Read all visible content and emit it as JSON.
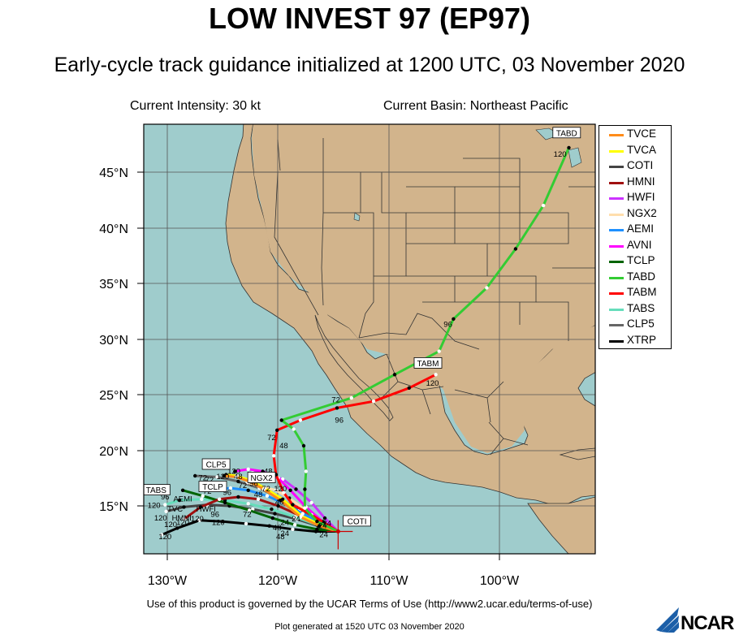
{
  "title": "LOW INVEST 97 (EP97)",
  "subtitle": "Early-cycle track guidance initialized at 1200 UTC, 03 November 2020",
  "current_intensity": "Current Intensity: 30 kt",
  "current_basin": "Current Basin: Northeast Pacific",
  "footer_terms": "Use of this product is governed by the UCAR Terms of Use (http://www2.ucar.edu/terms-of-use)",
  "footer_generated": "Plot generated at 1520 UTC   03 November 2020",
  "logo_text": "NCAR",
  "colors": {
    "ocean": "#9fcccc",
    "land": "#d2b48c",
    "border": "#333333"
  },
  "legend": [
    {
      "name": "TVCE",
      "color": "#ff8c1a"
    },
    {
      "name": "TVCA",
      "color": "#ffff00"
    },
    {
      "name": "COTI",
      "color": "#444444"
    },
    {
      "name": "HMNI",
      "color": "#a01010"
    },
    {
      "name": "HWFI",
      "color": "#cc33ff"
    },
    {
      "name": "NGX2",
      "color": "#ffdead"
    },
    {
      "name": "AEMI",
      "color": "#1e90ff"
    },
    {
      "name": "AVNI",
      "color": "#ff00ff"
    },
    {
      "name": "TCLP",
      "color": "#006400"
    },
    {
      "name": "TABD",
      "color": "#33cc33"
    },
    {
      "name": "TABM",
      "color": "#ff0000"
    },
    {
      "name": "TABS",
      "color": "#66ddbb"
    },
    {
      "name": "CLP5",
      "color": "#666666"
    },
    {
      "name": "XTRP",
      "color": "#000000"
    }
  ],
  "axes": {
    "lat_labels": [
      "45°N",
      "40°N",
      "35°N",
      "30°N",
      "25°N",
      "20°N",
      "15°N"
    ],
    "lon_labels": [
      "130°W",
      "120°W",
      "110°W",
      "100°W"
    ]
  },
  "chart_data": {
    "type": "map",
    "extent": {
      "lon": [
        -132,
        -92
      ],
      "lat": [
        11.5,
        49
      ]
    },
    "grid": true,
    "current_position": {
      "lon": -114.6,
      "lat": 12.7
    },
    "tracks": [
      {
        "name": "TABD",
        "color": "#33cc33",
        "points": [
          [
            -114.6,
            12.7
          ],
          [
            -116.5,
            13.6
          ],
          [
            -117.6,
            14.8
          ],
          [
            -117.6,
            16.5
          ],
          [
            -117.5,
            18.1
          ],
          [
            -117.7,
            20.4
          ],
          [
            -118.6,
            21.9
          ],
          [
            -119.7,
            22.7
          ],
          [
            -113.4,
            24.7
          ],
          [
            -109.5,
            26.8
          ],
          [
            -105.5,
            28.9
          ],
          [
            -104.2,
            31.8
          ],
          [
            -101.2,
            34.6
          ],
          [
            -98.6,
            38.1
          ],
          [
            -96.1,
            42.0
          ],
          [
            -93.8,
            47.2
          ]
        ],
        "labels": [
          {
            "t": "24",
            "lon": -115.6,
            "lat": 13.2
          },
          {
            "t": "72",
            "lon": -114.8,
            "lat": 24.3
          },
          {
            "t": "96",
            "lon": -104.7,
            "lat": 31.1
          },
          {
            "t": "120",
            "lon": -94.6,
            "lat": 46.4
          }
        ]
      },
      {
        "name": "TABM",
        "color": "#ff0000",
        "points": [
          [
            -114.6,
            12.7
          ],
          [
            -115.9,
            13.5
          ],
          [
            -117.0,
            14.2
          ],
          [
            -118.7,
            15.1
          ],
          [
            -119.5,
            16.2
          ],
          [
            -120.2,
            17.8
          ],
          [
            -120.4,
            19.5
          ],
          [
            -120.1,
            21.8
          ],
          [
            -118.0,
            22.7
          ],
          [
            -114.7,
            23.8
          ],
          [
            -111.4,
            24.4
          ],
          [
            -108.2,
            25.6
          ],
          [
            -105.8,
            26.8
          ]
        ],
        "labels": [
          {
            "t": "24",
            "lon": -116.0,
            "lat": 13.0
          },
          {
            "t": "48",
            "lon": -119.5,
            "lat": 20.2
          },
          {
            "t": "72",
            "lon": -120.6,
            "lat": 20.9
          },
          {
            "t": "96",
            "lon": -114.5,
            "lat": 22.5
          },
          {
            "t": "120",
            "lon": -106.1,
            "lat": 25.8
          }
        ]
      },
      {
        "name": "TVCE",
        "color": "#ff8c1a",
        "points": [
          [
            -114.6,
            12.7
          ],
          [
            -116.3,
            13.2
          ],
          [
            -118.0,
            14.0
          ],
          [
            -119.8,
            15.5
          ],
          [
            -121.3,
            16.5
          ],
          [
            -122.6,
            17.2
          ],
          [
            -123.8,
            17.6
          ],
          [
            -124.9,
            17.7
          ]
        ],
        "labels": []
      },
      {
        "name": "TVCA",
        "color": "#ffff00",
        "points": [
          [
            -114.6,
            12.7
          ],
          [
            -116.2,
            13.3
          ],
          [
            -117.9,
            14.1
          ],
          [
            -119.6,
            15.6
          ],
          [
            -121.2,
            16.6
          ],
          [
            -122.5,
            17.3
          ],
          [
            -123.7,
            17.7
          ],
          [
            -124.7,
            17.8
          ]
        ],
        "labels": []
      },
      {
        "name": "AVNI",
        "color": "#ff00ff",
        "points": [
          [
            -114.6,
            12.7
          ],
          [
            -116.0,
            13.6
          ],
          [
            -117.5,
            14.9
          ],
          [
            -118.9,
            16.4
          ],
          [
            -120.0,
            17.5
          ],
          [
            -121.4,
            18.1
          ],
          [
            -122.7,
            18.3
          ],
          [
            -123.9,
            18.1
          ]
        ],
        "labels": [
          {
            "t": "48",
            "lon": -120.9,
            "lat": 17.9
          }
        ]
      },
      {
        "name": "HWFI",
        "color": "#cc33ff",
        "points": [
          [
            -114.6,
            12.7
          ],
          [
            -115.8,
            13.9
          ],
          [
            -117.0,
            15.3
          ],
          [
            -118.4,
            16.5
          ],
          [
            -119.6,
            17.4
          ],
          [
            -121.0,
            17.8
          ],
          [
            -122.3,
            18.0
          ]
        ],
        "labels": [
          {
            "t": "96",
            "lon": -122.2,
            "lat": 16.8
          }
        ]
      },
      {
        "name": "NGX2",
        "color": "#ffdead",
        "points": [
          [
            -114.6,
            12.7
          ],
          [
            -116.0,
            13.4
          ],
          [
            -117.5,
            14.6
          ],
          [
            -119.0,
            15.7
          ],
          [
            -120.2,
            16.4
          ],
          [
            -121.7,
            16.8
          ],
          [
            -122.8,
            17.1
          ]
        ],
        "labels": [
          {
            "t": "120",
            "lon": -119.8,
            "lat": 16.3
          }
        ]
      },
      {
        "name": "AEMI",
        "color": "#1e90ff",
        "points": [
          [
            -114.6,
            12.7
          ],
          [
            -116.2,
            13.5
          ],
          [
            -117.8,
            14.3
          ],
          [
            -119.4,
            15.2
          ],
          [
            -121.0,
            15.9
          ],
          [
            -122.7,
            16.4
          ],
          [
            -124.3,
            16.6
          ],
          [
            -125.7,
            16.5
          ]
        ],
        "labels": []
      },
      {
        "name": "HMNI",
        "color": "#a01010",
        "points": [
          [
            -114.6,
            12.7
          ],
          [
            -116.4,
            13.4
          ],
          [
            -118.2,
            14.2
          ],
          [
            -120.0,
            15.0
          ],
          [
            -121.8,
            15.6
          ],
          [
            -123.6,
            15.8
          ],
          [
            -125.3,
            15.6
          ],
          [
            -127.0,
            14.9
          ],
          [
            -128.5,
            13.8
          ]
        ],
        "labels": [
          {
            "t": "120",
            "lon": -128.6,
            "lat": 13.3
          }
        ]
      },
      {
        "name": "TCLP",
        "color": "#006400",
        "points": [
          [
            -114.6,
            12.7
          ],
          [
            -116.5,
            12.9
          ],
          [
            -118.5,
            13.3
          ],
          [
            -120.5,
            13.9
          ],
          [
            -122.6,
            14.6
          ],
          [
            -124.8,
            15.3
          ],
          [
            -126.8,
            15.9
          ],
          [
            -128.6,
            16.4
          ]
        ],
        "labels": [
          {
            "t": "72",
            "lon": -122.8,
            "lat": 14.0
          }
        ]
      },
      {
        "name": "TABS",
        "color": "#66ddbb",
        "points": [
          [
            -114.6,
            12.7
          ],
          [
            -116.5,
            13.3
          ],
          [
            -118.5,
            14.0
          ],
          [
            -120.6,
            14.7
          ],
          [
            -122.7,
            15.2
          ],
          [
            -124.8,
            15.5
          ],
          [
            -126.9,
            15.6
          ],
          [
            -128.9,
            15.5
          ],
          [
            -130.2,
            15.1
          ]
        ],
        "labels": [
          {
            "t": "120",
            "lon": -131.2,
            "lat": 14.8
          }
        ]
      },
      {
        "name": "CLP5",
        "color": "#666666",
        "points": [
          [
            -114.6,
            12.7
          ],
          [
            -116.3,
            13.5
          ],
          [
            -118.1,
            14.6
          ],
          [
            -119.9,
            15.7
          ],
          [
            -121.7,
            16.6
          ],
          [
            -123.6,
            17.2
          ],
          [
            -125.5,
            17.6
          ],
          [
            -127.5,
            17.7
          ]
        ],
        "labels": [
          {
            "t": "72",
            "lon": -126.8,
            "lat": 17.3
          }
        ]
      },
      {
        "name": "COTI",
        "color": "#444444",
        "points": [
          [
            -114.6,
            12.7
          ],
          [
            -116.4,
            13.2
          ],
          [
            -118.3,
            13.8
          ],
          [
            -120.3,
            14.3
          ],
          [
            -122.3,
            14.7
          ],
          [
            -124.4,
            15.0
          ],
          [
            -126.4,
            15.1
          ],
          [
            -128.5,
            14.9
          ],
          [
            -130.1,
            14.5
          ]
        ],
        "labels": [
          {
            "t": "48",
            "lon": -120.1,
            "lat": 12.8
          },
          {
            "t": "120",
            "lon": -130.6,
            "lat": 13.7
          }
        ]
      },
      {
        "name": "XTRP",
        "color": "#000000",
        "points": [
          [
            -114.6,
            12.7
          ],
          [
            -116.6,
            12.7
          ],
          [
            -118.7,
            12.9
          ],
          [
            -120.8,
            13.2
          ],
          [
            -122.9,
            13.4
          ],
          [
            -125.0,
            13.6
          ],
          [
            -127.1,
            13.7
          ],
          [
            -129.1,
            13.0
          ],
          [
            -130.5,
            12.4
          ]
        ],
        "labels": [
          {
            "t": "24",
            "lon": -115.9,
            "lat": 12.2
          },
          {
            "t": "120",
            "lon": -130.2,
            "lat": 12.0
          }
        ]
      }
    ],
    "track_labels": [
      {
        "t": "TABD",
        "lon": -94.0,
        "lat": 48.3
      },
      {
        "t": "TABM",
        "lon": -106.5,
        "lat": 27.6
      },
      {
        "t": "NGX2",
        "lon": -121.5,
        "lat": 17.3
      },
      {
        "t": "CLP5",
        "lon": -125.6,
        "lat": 18.5
      },
      {
        "t": "TCLP",
        "lon": -125.9,
        "lat": 16.5
      },
      {
        "t": "TABS",
        "lon": -131.0,
        "lat": 16.2
      },
      {
        "t": "COTI",
        "lon": -112.9,
        "lat": 13.4
      }
    ],
    "misc_labels": [
      {
        "t": "72",
        "lon": -126.2,
        "lat": 17.1
      },
      {
        "t": "120",
        "lon": -125.0,
        "lat": 17.4
      },
      {
        "t": "96",
        "lon": -130.2,
        "lat": 15.6
      },
      {
        "t": "AEMI",
        "lon": -128.6,
        "lat": 15.4
      },
      {
        "t": "TVC",
        "lon": -129.3,
        "lat": 14.5
      },
      {
        "t": "HWFI",
        "lon": -126.5,
        "lat": 14.5
      },
      {
        "t": "HMNI",
        "lon": -128.7,
        "lat": 13.7
      },
      {
        "t": "120",
        "lon": -127.3,
        "lat": 13.6
      },
      {
        "t": "96",
        "lon": -125.7,
        "lat": 14.0
      },
      {
        "t": "120",
        "lon": -125.4,
        "lat": 13.3
      },
      {
        "t": "120",
        "lon": -129.7,
        "lat": 13.1
      },
      {
        "t": "48",
        "lon": -121.8,
        "lat": 15.8
      },
      {
        "t": "24",
        "lon": -119.4,
        "lat": 13.3
      },
      {
        "t": "24",
        "lon": -119.4,
        "lat": 12.3
      },
      {
        "t": "48",
        "lon": -119.8,
        "lat": 12.0
      },
      {
        "t": "72",
        "lon": -126.4,
        "lat": 16.1
      },
      {
        "t": "96",
        "lon": -124.6,
        "lat": 16.0
      },
      {
        "t": "72",
        "lon": -123.2,
        "lat": 16.6
      },
      {
        "t": "48",
        "lon": -123.6,
        "lat": 17.4
      },
      {
        "t": "120",
        "lon": -124.0,
        "lat": 17.9
      },
      {
        "t": "48",
        "lon": -119.9,
        "lat": 15.1
      },
      {
        "t": "24",
        "lon": -118.4,
        "lat": 13.6
      },
      {
        "t": "72",
        "lon": -121.1,
        "lat": 16.3
      }
    ]
  }
}
